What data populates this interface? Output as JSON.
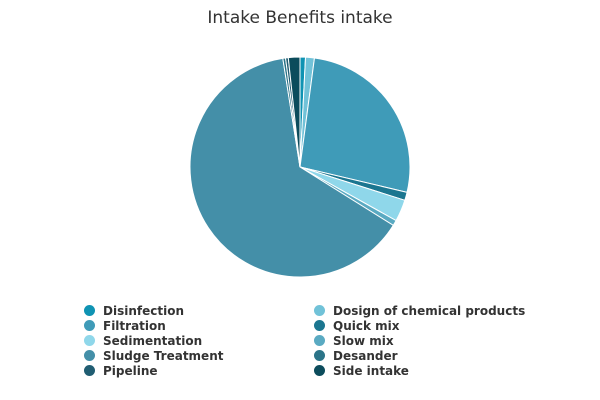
{
  "chart_data": {
    "type": "pie",
    "title": "Intake Benefits intake",
    "legend_position": "bottom",
    "slices": [
      {
        "name": "Disinfection",
        "value": 0.8,
        "color": "#0f93b3"
      },
      {
        "name": "Dosign of chemical products",
        "value": 1.3,
        "color": "#71c2d8"
      },
      {
        "name": "Filtration",
        "value": 26.6,
        "color": "#3f9bb8"
      },
      {
        "name": "Quick mix",
        "value": 1.2,
        "color": "#1b7690"
      },
      {
        "name": "Sedimentation",
        "value": 3.2,
        "color": "#8fd7ea"
      },
      {
        "name": "Slow mix",
        "value": 0.8,
        "color": "#5aaac2"
      },
      {
        "name": "Sludge Treatment",
        "value": 63.6,
        "color": "#448fa8"
      },
      {
        "name": "Desander",
        "value": 0.4,
        "color": "#2b7488"
      },
      {
        "name": "Pipeline",
        "value": 0.4,
        "color": "#205d72"
      },
      {
        "name": "Side intake",
        "value": 1.7,
        "color": "#0c4c5c"
      }
    ]
  }
}
